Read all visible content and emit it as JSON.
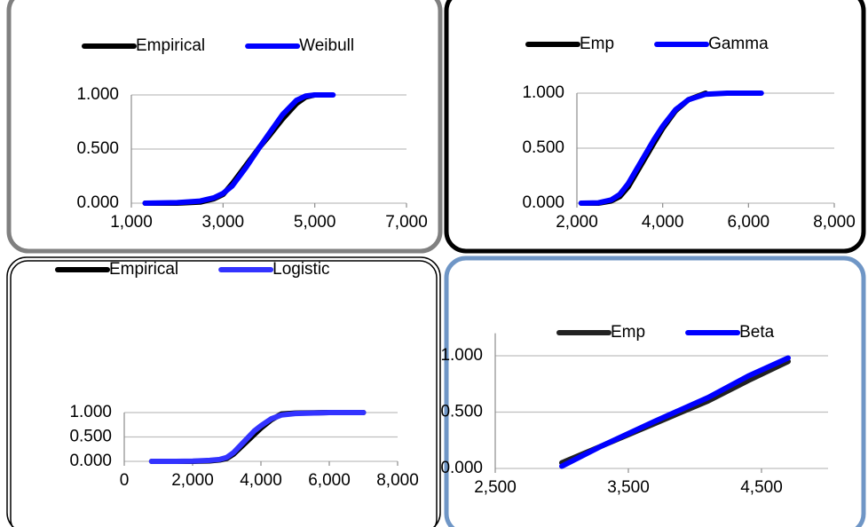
{
  "chart_data": [
    {
      "type": "line",
      "x": [
        1300,
        2000,
        2500,
        2800,
        3000,
        3200,
        3500,
        3800,
        4000,
        4300,
        4600,
        4800,
        5000,
        5400
      ],
      "series": [
        {
          "name": "Empirical",
          "color": "#000000",
          "values": [
            0,
            0,
            0.01,
            0.04,
            0.08,
            0.18,
            0.35,
            0.52,
            0.62,
            0.78,
            0.92,
            0.98,
            1,
            null
          ]
        },
        {
          "name": "Weibull",
          "color": "#0000ff",
          "values": [
            0,
            0.005,
            0.02,
            0.05,
            0.09,
            0.16,
            0.33,
            0.52,
            0.64,
            0.82,
            0.95,
            0.99,
            1,
            1
          ]
        }
      ],
      "xlim": [
        1000,
        7000
      ],
      "xticks": [
        {
          "value": 1000,
          "label": "1,000"
        },
        {
          "value": 3000,
          "label": "3,000"
        },
        {
          "value": 5000,
          "label": "5,000"
        },
        {
          "value": 7000,
          "label": "7,000"
        }
      ],
      "ylim": [
        0,
        1
      ],
      "yticks": [
        {
          "value": 0,
          "label": "0.000"
        },
        {
          "value": 0.5,
          "label": "0.500"
        },
        {
          "value": 1,
          "label": "1.000"
        }
      ],
      "grid": true,
      "legend": "top"
    },
    {
      "type": "line",
      "x": [
        2100,
        2500,
        2800,
        3000,
        3200,
        3500,
        3800,
        4000,
        4300,
        4600,
        5000,
        5500,
        6300
      ],
      "series": [
        {
          "name": "Emp",
          "color": "#000000",
          "values": [
            0,
            0,
            0.02,
            0.06,
            0.15,
            0.35,
            0.55,
            0.68,
            0.84,
            0.94,
            1,
            null,
            null
          ]
        },
        {
          "name": "Gamma",
          "color": "#0000ff",
          "values": [
            0,
            0.003,
            0.03,
            0.08,
            0.18,
            0.38,
            0.58,
            0.7,
            0.85,
            0.94,
            0.99,
            1,
            1
          ]
        }
      ],
      "xlim": [
        2000,
        8000
      ],
      "xticks": [
        {
          "value": 2000,
          "label": "2,000"
        },
        {
          "value": 4000,
          "label": "4,000"
        },
        {
          "value": 6000,
          "label": "6,000"
        },
        {
          "value": 8000,
          "label": "8,000"
        }
      ],
      "ylim": [
        0,
        1
      ],
      "yticks": [
        {
          "value": 0,
          "label": "0.000"
        },
        {
          "value": 0.5,
          "label": "0.500"
        },
        {
          "value": 1,
          "label": "1.000"
        }
      ],
      "grid": true,
      "legend": "top"
    },
    {
      "type": "line",
      "x": [
        800,
        1500,
        2000,
        2500,
        2800,
        3000,
        3200,
        3500,
        3800,
        4000,
        4300,
        4600,
        5000,
        6000,
        7000
      ],
      "series": [
        {
          "name": "Empirical",
          "color": "#000000",
          "values": [
            0,
            0,
            0,
            0.01,
            0.03,
            0.06,
            0.15,
            0.35,
            0.55,
            0.68,
            0.85,
            0.97,
            0.99,
            1,
            1
          ]
        },
        {
          "name": "Logistic",
          "color": "#3333ff",
          "values": [
            0,
            0,
            0.005,
            0.02,
            0.04,
            0.08,
            0.18,
            0.4,
            0.62,
            0.73,
            0.87,
            0.95,
            0.98,
            1,
            1
          ]
        }
      ],
      "xlim": [
        0,
        8000
      ],
      "xticks": [
        0,
        {
          "value": 2000,
          "label": "2,000"
        },
        {
          "value": 4000,
          "label": "4,000"
        },
        {
          "value": 6000,
          "label": "6,000"
        },
        {
          "value": 8000,
          "label": "8,000"
        }
      ],
      "ylim": [
        0,
        1
      ],
      "yticks": [
        {
          "value": 0,
          "label": "0.000"
        },
        {
          "value": 0.5,
          "label": "0.500"
        },
        {
          "value": 1,
          "label": "1.000"
        }
      ],
      "grid": true,
      "legend": "top"
    },
    {
      "type": "line",
      "x": [
        3000,
        3300,
        3700,
        4100,
        4400,
        4700
      ],
      "series": [
        {
          "name": "Emp",
          "color": "#222222",
          "values": [
            0.05,
            0.2,
            0.4,
            0.6,
            0.78,
            0.95
          ]
        },
        {
          "name": "Beta",
          "color": "#0000ff",
          "values": [
            0.02,
            0.2,
            0.42,
            0.63,
            0.82,
            0.98
          ]
        }
      ],
      "xlim": [
        2500,
        5000
      ],
      "xticks": [
        {
          "value": 2500,
          "label": "2,500"
        },
        {
          "value": 3500,
          "label": "3,500"
        },
        {
          "value": 4500,
          "label": "4,500"
        }
      ],
      "ylim": [
        0,
        1.2
      ],
      "yticks": [
        {
          "value": 0,
          "label": "0.000"
        },
        {
          "value": 0.5,
          "label": "0.500"
        },
        {
          "value": 1,
          "label": "1.000"
        }
      ],
      "grid": true,
      "legend": "top"
    }
  ]
}
